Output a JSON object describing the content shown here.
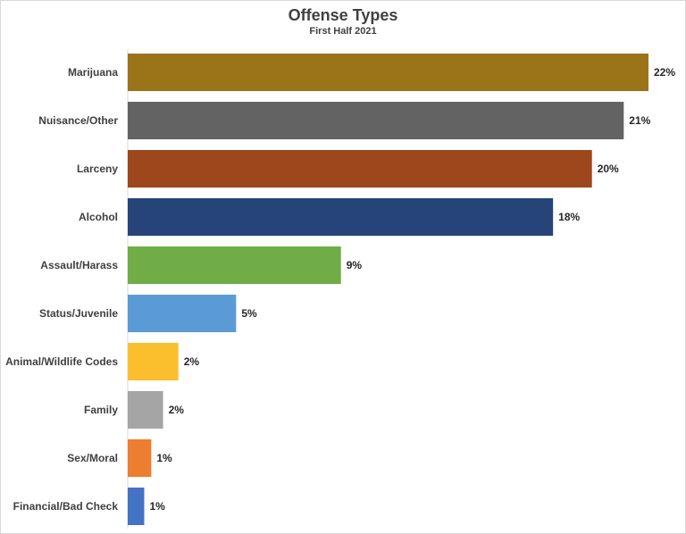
{
  "chart_data": {
    "type": "bar",
    "orientation": "horizontal",
    "title": "Offense Types",
    "subtitle": "First Half 2021",
    "categories": [
      "Marijuana",
      "Nuisance/Other",
      "Larceny",
      "Alcohol",
      "Assault/Harass",
      "Status/Juvenile",
      "Animal/Wildlife Codes",
      "Family",
      "Sex/Moral",
      "Financial/Bad Check"
    ],
    "values": [
      22,
      21,
      20,
      18,
      9,
      5,
      2,
      2,
      1,
      1
    ],
    "value_labels": [
      "22%",
      "21%",
      "20%",
      "18%",
      "9%",
      "5%",
      "2%",
      "2%",
      "1%",
      "1%"
    ],
    "bar_lengths_pct": [
      22.1,
      21.05,
      19.7,
      18.05,
      9.05,
      4.6,
      2.15,
      1.5,
      1.0,
      0.7
    ],
    "colors": [
      "#9b7419",
      "#636363",
      "#9e461c",
      "#264478",
      "#70ad47",
      "#5b9bd5",
      "#fbbf2e",
      "#a5a5a5",
      "#ed7d31",
      "#4472c4"
    ],
    "xlim": [
      0,
      22.1
    ],
    "grid": false,
    "legend": "none"
  }
}
